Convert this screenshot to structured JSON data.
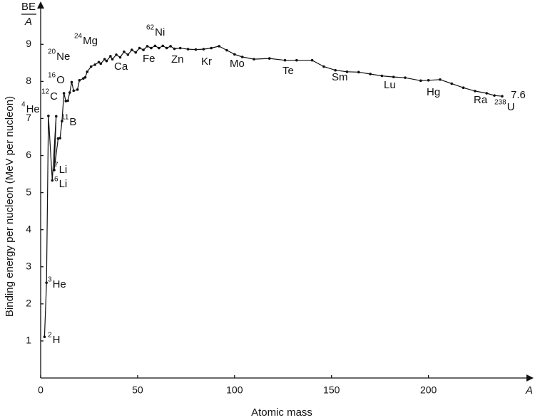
{
  "chart_data": {
    "type": "line",
    "y_label_top": "BE",
    "y_label_bottom": "A",
    "y_label": "Binding energy per nucleon (MeV per nucleon)",
    "x_label": "Atomic mass",
    "x_axis_symbol": "A",
    "color": "#111111",
    "xlim": [
      0,
      252
    ],
    "ylim": [
      0,
      10.1
    ],
    "xticks": [
      0,
      50,
      100,
      150,
      200
    ],
    "yticks": [
      1,
      2,
      3,
      4,
      5,
      6,
      7,
      8,
      9
    ],
    "x": [
      2,
      3,
      4,
      6,
      8,
      7,
      9,
      10,
      11,
      12,
      13,
      14,
      15,
      16,
      17,
      19,
      20,
      22,
      23,
      24,
      26,
      28,
      30,
      31,
      33,
      34,
      36,
      37,
      39,
      41,
      43,
      45,
      47,
      49,
      51,
      53,
      55,
      57,
      59,
      61,
      63,
      65,
      67,
      69,
      72,
      76,
      80,
      84,
      88,
      92,
      96,
      100,
      104,
      110,
      118,
      126,
      132,
      140,
      146,
      152,
      158,
      164,
      170,
      176,
      182,
      188,
      196,
      200,
      206,
      212,
      218,
      224,
      230,
      234,
      238
    ],
    "values": [
      1.11,
      2.57,
      7.07,
      5.33,
      7.06,
      5.61,
      6.46,
      6.47,
      6.93,
      7.68,
      7.47,
      7.48,
      7.7,
      7.98,
      7.75,
      7.78,
      8.03,
      8.08,
      8.11,
      8.26,
      8.4,
      8.45,
      8.52,
      8.48,
      8.6,
      8.55,
      8.68,
      8.6,
      8.72,
      8.65,
      8.8,
      8.72,
      8.85,
      8.78,
      8.9,
      8.85,
      8.95,
      8.9,
      8.96,
      8.9,
      8.96,
      8.9,
      8.95,
      8.88,
      8.9,
      8.87,
      8.86,
      8.87,
      8.9,
      8.95,
      8.84,
      8.73,
      8.66,
      8.6,
      8.62,
      8.57,
      8.57,
      8.57,
      8.4,
      8.3,
      8.26,
      8.25,
      8.2,
      8.15,
      8.12,
      8.1,
      8.02,
      8.03,
      8.05,
      7.94,
      7.83,
      7.74,
      7.68,
      7.62,
      7.6
    ],
    "annotations": [
      {
        "mass": "2",
        "text": "H"
      },
      {
        "mass": "3",
        "text": "He"
      },
      {
        "mass": "4",
        "text": "He"
      },
      {
        "mass": "6",
        "text": "Li"
      },
      {
        "mass": "7",
        "text": "Li"
      },
      {
        "mass": "11",
        "text": "B"
      },
      {
        "mass": "12",
        "text": "C"
      },
      {
        "mass": "16",
        "text": "O"
      },
      {
        "mass": "20",
        "text": "Ne"
      },
      {
        "mass": "24",
        "text": "Mg"
      },
      {
        "mass": "62",
        "text": "Ni"
      },
      {
        "text": "Ca"
      },
      {
        "text": "Fe"
      },
      {
        "text": "Zn"
      },
      {
        "text": "Kr"
      },
      {
        "text": "Mo"
      },
      {
        "text": "Te"
      },
      {
        "text": "Sm"
      },
      {
        "text": "Lu"
      },
      {
        "text": "Hg"
      },
      {
        "text": "Ra"
      },
      {
        "mass": "238",
        "text": "U"
      },
      {
        "text": "7.6"
      }
    ]
  }
}
